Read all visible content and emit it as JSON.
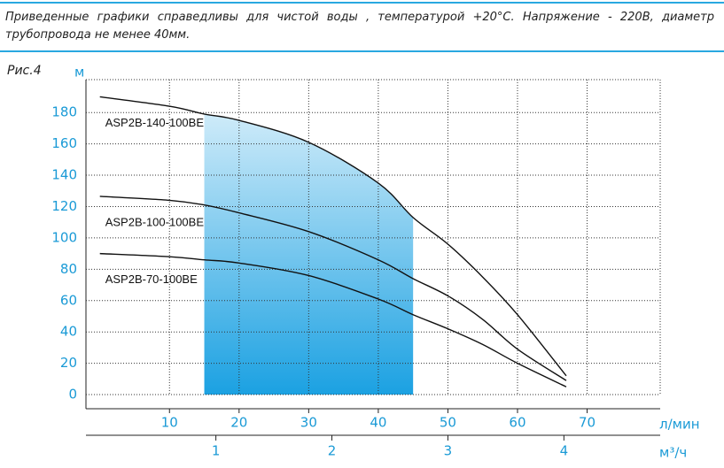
{
  "note": "Приведенные графики справедливы для чистой воды , температурой  +20°C. Напряжение - 220В,  диаметр трубопровода не менее 40мм.",
  "chart_data": {
    "type": "line",
    "title": "Рис.4",
    "y_label": "м",
    "x_label": "л/мин",
    "x2_label": "м³/ч",
    "x": [
      0,
      10,
      15,
      20,
      30,
      40,
      45,
      50,
      55,
      60,
      67
    ],
    "series": [
      {
        "name": "ASP2B-140-100BE",
        "color": "#111111",
        "values": [
          190,
          184,
          179,
          175,
          161,
          135,
          113,
          96,
          75,
          51,
          12
        ]
      },
      {
        "name": "ASP2B-100-100BE",
        "color": "#111111",
        "values": [
          126.5,
          124,
          121,
          116,
          104,
          86,
          74,
          63,
          48,
          29,
          9
        ]
      },
      {
        "name": "ASP2B-70-100BE",
        "color": "#111111",
        "values": [
          90,
          88,
          86,
          84,
          76,
          61,
          51,
          42,
          32,
          20,
          5
        ]
      }
    ],
    "highlight_x": [
      15,
      45
    ],
    "xlim": [
      -2,
      80.5
    ],
    "xticks": [
      10,
      20,
      30,
      40,
      50,
      60,
      70
    ],
    "x2lim": [
      -0.12,
      4.83
    ],
    "x2ticks": [
      1,
      2,
      3,
      4
    ],
    "ylim": [
      -9,
      201
    ],
    "yticks": [
      0,
      20,
      40,
      60,
      80,
      100,
      120,
      140,
      160,
      180
    ],
    "grid": true
  }
}
